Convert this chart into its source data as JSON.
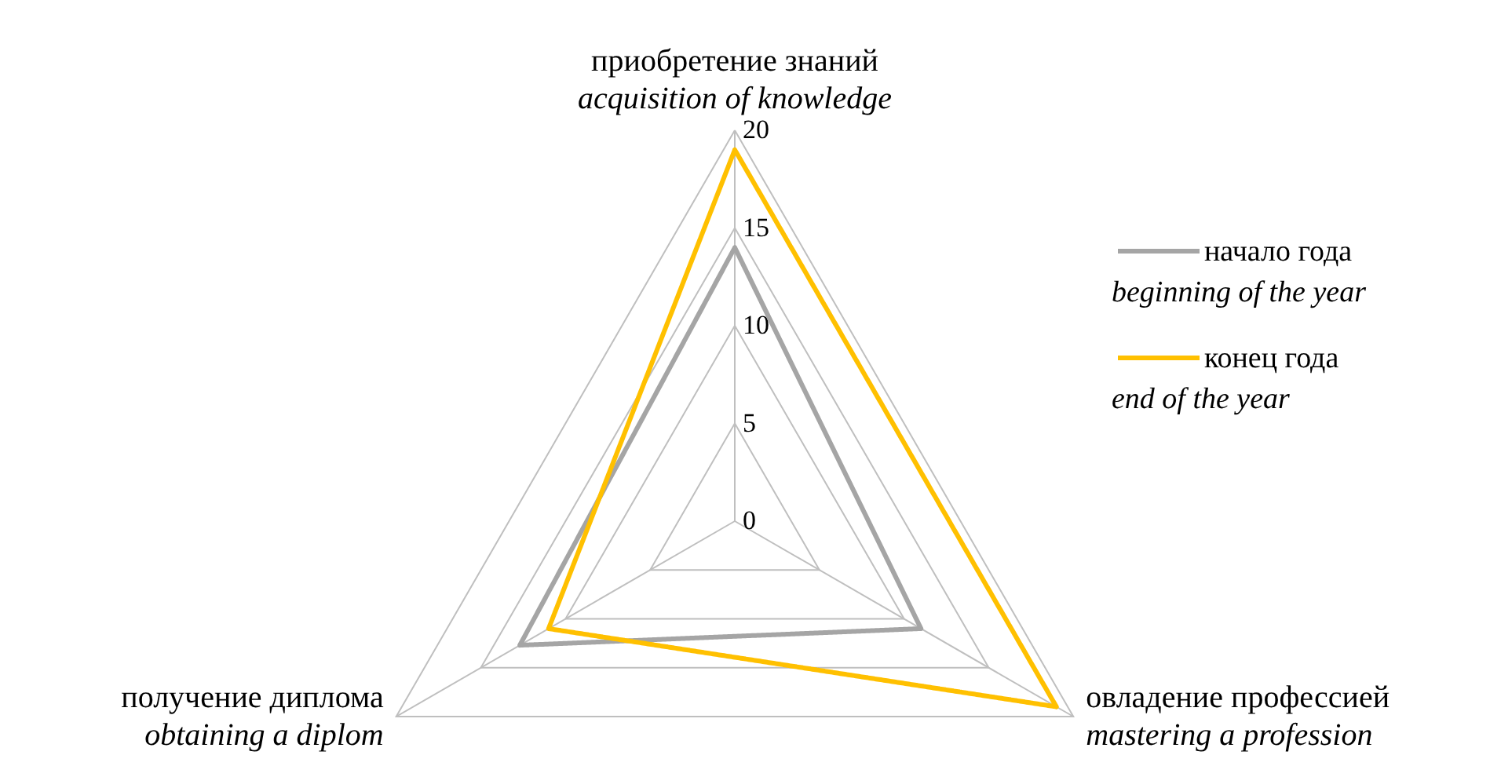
{
  "chart_data": {
    "type": "radar",
    "categories": [
      "приобретение знаний\nacquisition of knowledge",
      "овладение профессией\nmastering a profession",
      "получение диплома\nobtaining a diplom"
    ],
    "series": [
      {
        "name": "начало года\nbeginning of the year",
        "color": "#a5a5a5",
        "values": [
          14,
          11,
          12.7
        ]
      },
      {
        "name": "конец года\nend of the year",
        "color": "#ffc000",
        "values": [
          19,
          19,
          11
        ]
      }
    ],
    "ylim": [
      0,
      20
    ],
    "yticks": [
      0,
      5,
      10,
      15,
      20
    ],
    "grid": true,
    "legend": "right",
    "line_style": "solid",
    "marker": "none"
  }
}
